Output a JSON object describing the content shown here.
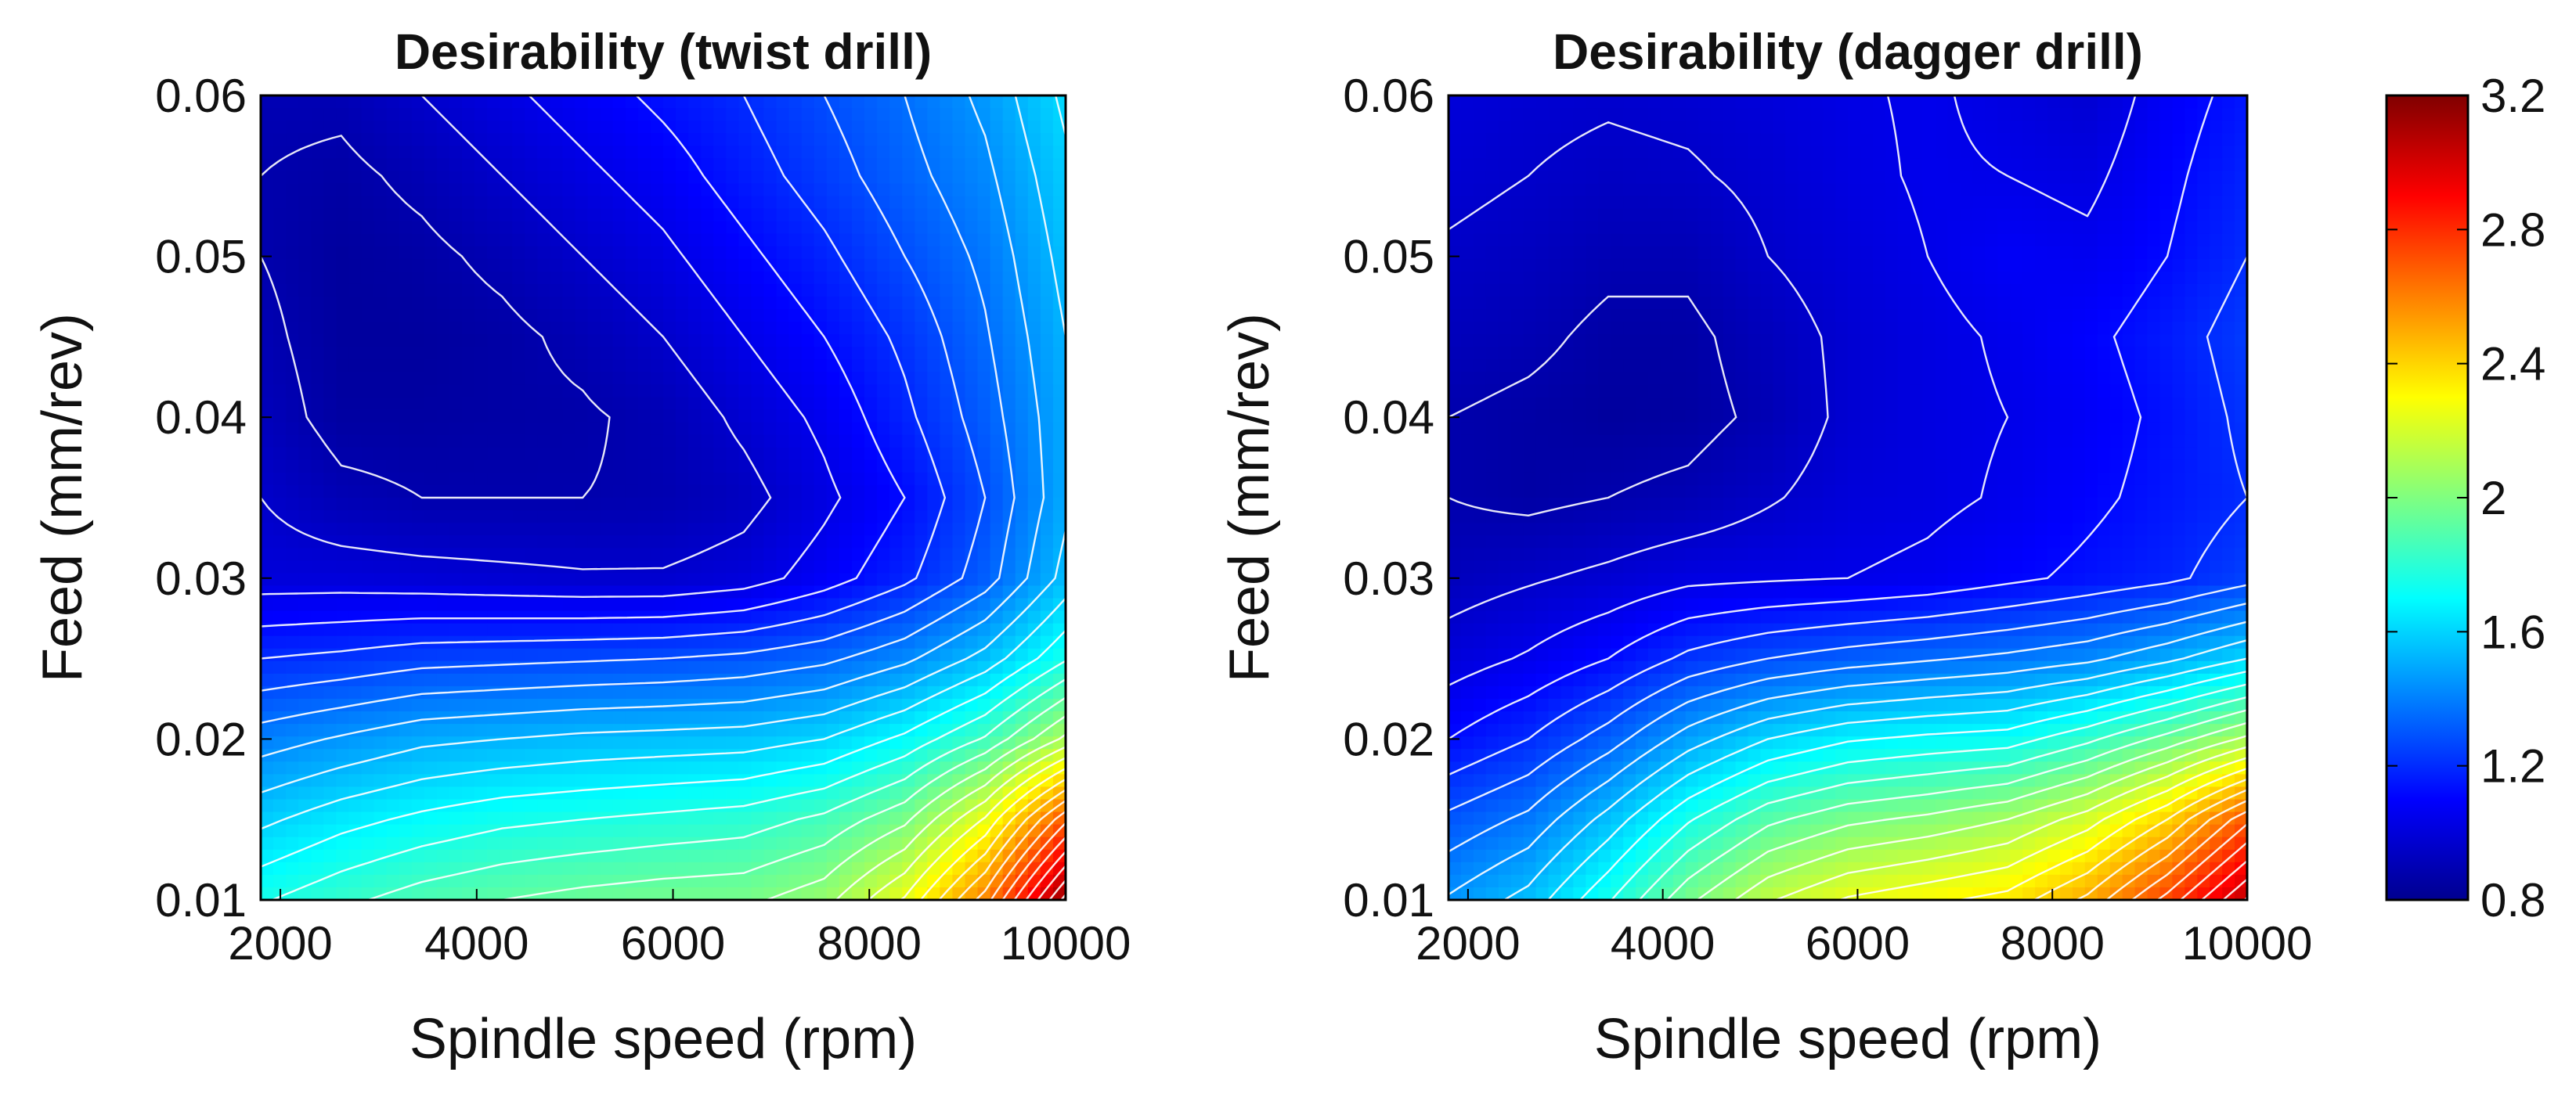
{
  "colors": {
    "contour_line": "#ffffff",
    "frame": "#000000",
    "colormap": [
      "#00008f",
      "#0000ff",
      "#0080ff",
      "#00ffff",
      "#80ff80",
      "#ffff00",
      "#ff8000",
      "#ff0000",
      "#800000"
    ]
  },
  "chart_data": [
    {
      "type": "contour",
      "title": "Desirability (twist drill)",
      "xlabel": "Spindle speed (rpm)",
      "ylabel": "Feed (mm/rev)",
      "xlim": [
        1800,
        10000
      ],
      "ylim": [
        0.01,
        0.06
      ],
      "x_ticks": [
        2000,
        4000,
        6000,
        8000,
        10000
      ],
      "x_tick_labels": [
        "2000",
        "4000",
        "6000",
        "8000",
        "10000"
      ],
      "y_ticks": [
        0.01,
        0.02,
        0.03,
        0.04,
        0.05,
        0.06
      ],
      "y_tick_labels": [
        "0.01",
        "0.02",
        "0.03",
        "0.04",
        "0.05",
        "0.06"
      ],
      "x": [
        1800,
        2620,
        3440,
        4260,
        5080,
        5900,
        6720,
        7540,
        8360,
        9180,
        10000
      ],
      "y": [
        0.01,
        0.015,
        0.02,
        0.025,
        0.03,
        0.035,
        0.04,
        0.045,
        0.05,
        0.055,
        0.06
      ],
      "z": [
        [
          1.75,
          1.82,
          1.88,
          1.92,
          1.95,
          1.97,
          1.98,
          2.05,
          2.25,
          2.6,
          3.15
        ],
        [
          1.58,
          1.65,
          1.7,
          1.74,
          1.76,
          1.78,
          1.8,
          1.86,
          1.98,
          2.25,
          2.7
        ],
        [
          1.4,
          1.45,
          1.5,
          1.52,
          1.54,
          1.55,
          1.56,
          1.6,
          1.7,
          1.85,
          2.1
        ],
        [
          1.2,
          1.22,
          1.25,
          1.26,
          1.27,
          1.28,
          1.3,
          1.34,
          1.42,
          1.55,
          1.75
        ],
        [
          1.0,
          1.0,
          0.99,
          0.98,
          0.97,
          0.97,
          1.0,
          1.08,
          1.18,
          1.32,
          1.55
        ],
        [
          0.96,
          0.9,
          0.88,
          0.88,
          0.88,
          0.89,
          0.93,
          1.02,
          1.12,
          1.28,
          1.5
        ],
        [
          0.92,
          0.85,
          0.85,
          0.86,
          0.87,
          0.9,
          0.98,
          1.06,
          1.18,
          1.32,
          1.5
        ],
        [
          0.9,
          0.84,
          0.84,
          0.86,
          0.9,
          0.96,
          1.04,
          1.12,
          1.22,
          1.35,
          1.52
        ],
        [
          0.88,
          0.84,
          0.86,
          0.9,
          0.96,
          1.02,
          1.1,
          1.18,
          1.28,
          1.38,
          1.55
        ],
        [
          0.88,
          0.86,
          0.9,
          0.96,
          1.02,
          1.08,
          1.16,
          1.24,
          1.33,
          1.42,
          1.58
        ],
        [
          0.9,
          0.9,
          0.96,
          1.02,
          1.08,
          1.14,
          1.2,
          1.28,
          1.36,
          1.46,
          1.62
        ]
      ]
    },
    {
      "type": "contour",
      "title": "Desirability (dagger drill)",
      "xlabel": "Spindle speed (rpm)",
      "ylabel": "Feed (mm/rev)",
      "xlim": [
        1800,
        10000
      ],
      "ylim": [
        0.01,
        0.06
      ],
      "x_ticks": [
        2000,
        4000,
        6000,
        8000,
        10000
      ],
      "x_tick_labels": [
        "2000",
        "4000",
        "6000",
        "8000",
        "10000"
      ],
      "y_ticks": [
        0.01,
        0.02,
        0.03,
        0.04,
        0.05,
        0.06
      ],
      "y_tick_labels": [
        "0.01",
        "0.02",
        "0.03",
        "0.04",
        "0.05",
        "0.06"
      ],
      "x": [
        1800,
        2620,
        3440,
        4260,
        5080,
        5900,
        6720,
        7540,
        8360,
        9180,
        10000
      ],
      "y": [
        0.01,
        0.015,
        0.02,
        0.025,
        0.03,
        0.035,
        0.04,
        0.045,
        0.05,
        0.055,
        0.06
      ],
      "z": [
        [
          1.45,
          1.55,
          1.75,
          1.98,
          2.15,
          2.25,
          2.3,
          2.35,
          2.5,
          2.75,
          3.05
        ],
        [
          1.3,
          1.38,
          1.55,
          1.75,
          1.9,
          1.98,
          2.02,
          2.08,
          2.2,
          2.4,
          2.7
        ],
        [
          1.12,
          1.2,
          1.32,
          1.48,
          1.6,
          1.67,
          1.7,
          1.72,
          1.82,
          1.95,
          2.1
        ],
        [
          1.0,
          1.05,
          1.12,
          1.22,
          1.28,
          1.32,
          1.35,
          1.38,
          1.42,
          1.5,
          1.6
        ],
        [
          0.92,
          0.95,
          0.98,
          1.02,
          1.03,
          1.04,
          1.06,
          1.1,
          1.14,
          1.18,
          1.25
        ],
        [
          0.88,
          0.86,
          0.88,
          0.9,
          0.95,
          1.0,
          1.02,
          1.05,
          1.1,
          1.15,
          1.2
        ],
        [
          0.88,
          0.86,
          0.84,
          0.85,
          0.9,
          0.98,
          1.02,
          1.04,
          1.08,
          1.14,
          1.22
        ],
        [
          0.92,
          0.9,
          0.86,
          0.86,
          0.92,
          0.98,
          1.02,
          1.05,
          1.1,
          1.16,
          1.24
        ],
        [
          0.95,
          0.93,
          0.9,
          0.9,
          0.96,
          1.0,
          1.04,
          1.08,
          1.06,
          1.12,
          1.2
        ],
        [
          0.98,
          0.96,
          0.94,
          0.95,
          0.98,
          1.02,
          1.05,
          1.04,
          1.02,
          1.1,
          1.18
        ],
        [
          1.0,
          0.98,
          0.97,
          0.98,
          1.0,
          1.03,
          1.05,
          1.02,
          0.98,
          1.08,
          1.15
        ]
      ]
    }
  ],
  "colorbar": {
    "min": 0.8,
    "max": 3.2,
    "ticks": [
      0.8,
      1.2,
      1.6,
      2,
      2.4,
      2.8,
      3.2
    ],
    "tick_labels": [
      "0.8",
      "1.2",
      "1.6",
      "2",
      "2.4",
      "2.8",
      "3.2"
    ],
    "contour_levels": [
      0.88,
      0.96,
      1.04,
      1.12,
      1.2,
      1.28,
      1.36,
      1.44,
      1.52,
      1.6,
      1.68,
      1.76,
      1.84,
      1.92,
      2.0,
      2.08,
      2.16,
      2.24,
      2.32,
      2.4,
      2.48,
      2.56,
      2.64,
      2.72,
      2.8,
      2.88,
      2.96,
      3.04,
      3.12
    ]
  }
}
